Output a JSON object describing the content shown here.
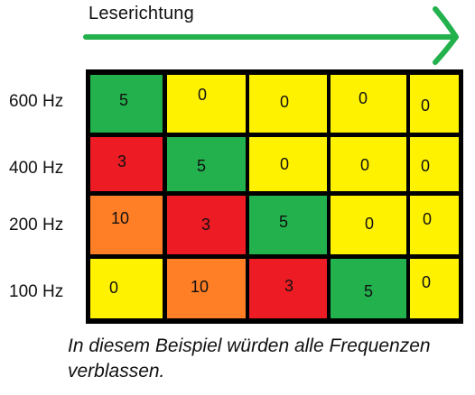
{
  "header": {
    "direction_label": "Leserichtung"
  },
  "rows": [
    {
      "label": "600 Hz",
      "cells": [
        {
          "value": "5",
          "color": "#22b14c"
        },
        {
          "value": "0",
          "color": "#fff200"
        },
        {
          "value": "0",
          "color": "#fff200"
        },
        {
          "value": "0",
          "color": "#fff200"
        },
        {
          "value": "0",
          "color": "#fff200"
        }
      ]
    },
    {
      "label": "400 Hz",
      "cells": [
        {
          "value": "3",
          "color": "#ed1c24"
        },
        {
          "value": "5",
          "color": "#22b14c"
        },
        {
          "value": "0",
          "color": "#fff200"
        },
        {
          "value": "0",
          "color": "#fff200"
        },
        {
          "value": "0",
          "color": "#fff200"
        }
      ]
    },
    {
      "label": "200 Hz",
      "cells": [
        {
          "value": "10",
          "color": "#ff7f27"
        },
        {
          "value": "3",
          "color": "#ed1c24"
        },
        {
          "value": "5",
          "color": "#22b14c"
        },
        {
          "value": "0",
          "color": "#fff200"
        },
        {
          "value": "0",
          "color": "#fff200"
        }
      ]
    },
    {
      "label": "100 Hz",
      "cells": [
        {
          "value": "0",
          "color": "#fff200"
        },
        {
          "value": "10",
          "color": "#ff7f27"
        },
        {
          "value": "3",
          "color": "#ed1c24"
        },
        {
          "value": "5",
          "color": "#22b14c"
        },
        {
          "value": "0",
          "color": "#fff200"
        }
      ]
    }
  ],
  "caption": "In diesem Beispiel würden alle Frequenzen verblassen.",
  "colors": {
    "arrow": "#22b14c",
    "grid_line": "#000000"
  }
}
